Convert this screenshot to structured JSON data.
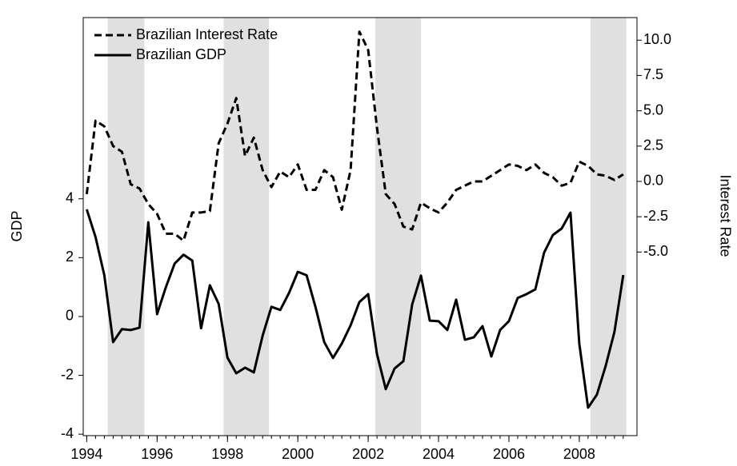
{
  "chart_data": {
    "type": "line",
    "ylabel": "GDP",
    "y2label": "Interest Rate",
    "x": [
      1994,
      1994.25,
      1994.5,
      1994.75,
      1995,
      1995.25,
      1995.5,
      1995.75,
      1996,
      1996.25,
      1996.5,
      1996.75,
      1997,
      1997.25,
      1997.5,
      1997.75,
      1998,
      1998.25,
      1998.5,
      1998.75,
      1999,
      1999.25,
      1999.5,
      1999.75,
      2000,
      2000.25,
      2000.5,
      2000.75,
      2001,
      2001.25,
      2001.5,
      2001.75,
      2002,
      2002.25,
      2002.5,
      2002.75,
      2003,
      2003.25,
      2003.5,
      2003.75,
      2004,
      2004.25,
      2004.5,
      2004.75,
      2005,
      2005.25,
      2005.5,
      2005.75,
      2006,
      2006.25,
      2006.5,
      2006.75,
      2007,
      2007.25,
      2007.5,
      2007.75,
      2008,
      2008.25,
      2008.5,
      2008.75,
      2009,
      2009.25
    ],
    "series": [
      {
        "name": "Brazilian Interest Rate",
        "color": "#000000",
        "style": "dashed",
        "axis": "y2",
        "values": [
          -0.9,
          4.3,
          3.9,
          2.5,
          2.1,
          -0.2,
          -0.5,
          -1.6,
          -2.3,
          -3.7,
          -3.7,
          -4.2,
          -2.2,
          -2.2,
          -2.1,
          2.7,
          4.1,
          5.9,
          1.8,
          3.1,
          0.8,
          -0.4,
          0.7,
          0.3,
          1.2,
          -0.6,
          -0.6,
          0.8,
          0.3,
          -2.0,
          0.8,
          10.6,
          9.3,
          3.8,
          -0.9,
          -1.6,
          -3.2,
          -3.4,
          -1.5,
          -1.9,
          -2.2,
          -1.5,
          -0.6,
          -0.3,
          0,
          0,
          0.4,
          0.8,
          1.2,
          1.1,
          0.8,
          1.2,
          0.6,
          0.3,
          -0.3,
          -0.1,
          1.4,
          1.1,
          0.5,
          0.4,
          0.1,
          0.5
        ]
      },
      {
        "name": "Brazilian GDP",
        "color": "#000000",
        "style": "solid",
        "axis": "y",
        "values": [
          3.64,
          2.7,
          1.4,
          -0.87,
          -0.43,
          -0.46,
          -0.38,
          3.2,
          0.08,
          1.0,
          1.8,
          2.1,
          1.9,
          -0.4,
          1.06,
          0.43,
          -1.4,
          -1.93,
          -1.74,
          -1.9,
          -0.65,
          0.33,
          0.22,
          0.8,
          1.52,
          1.4,
          0.33,
          -0.87,
          -1.41,
          -0.92,
          -0.3,
          0.49,
          0.76,
          -1.28,
          -2.47,
          -1.77,
          -1.52,
          0.41,
          1.39,
          -0.14,
          -0.16,
          -0.46,
          0.57,
          -0.79,
          -0.71,
          -0.33,
          -1.36,
          -0.46,
          -0.16,
          0.63,
          0.76,
          0.92,
          2.17,
          2.77,
          2.99,
          3.53,
          -0.92,
          -3.1,
          -2.66,
          -1.68,
          -0.52,
          1.41
        ]
      }
    ],
    "shaded": [
      [
        1994.6,
        1995.64
      ],
      [
        1997.89,
        1999.18
      ],
      [
        2002.2,
        2003.5
      ],
      [
        2008.32,
        2009.34
      ]
    ],
    "shade_color": "#e0e0e0",
    "xlim": [
      1993.9,
      2009.64
    ],
    "xticks": [
      1994,
      1996,
      1998,
      2000,
      2002,
      2004,
      2006,
      2008
    ],
    "ylim": [
      -4.05,
      10.16
    ],
    "yticks": [
      -4,
      -2,
      0,
      2,
      4
    ],
    "y2lim": [
      -18,
      11.6
    ],
    "y2ticks": [
      {
        "value": 10,
        "label": "10.0"
      },
      7.5,
      {
        "value": 5,
        "label": "5.0"
      },
      2.5,
      {
        "value": 0,
        "label": "0.0"
      },
      -2.5,
      {
        "value": -5,
        "label": "-5.0"
      }
    ],
    "legend": "upper left"
  }
}
